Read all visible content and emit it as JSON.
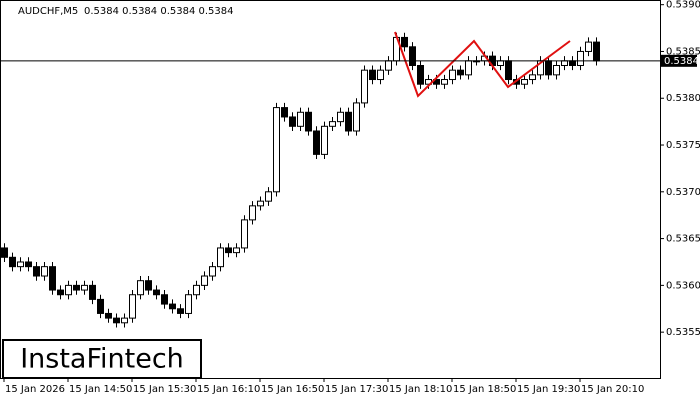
{
  "chart_data": {
    "type": "candlestick",
    "title": "AUDCHF,M5",
    "subtitle": "0.5384 0.5384 0.5384 0.5384",
    "watermark": "InstaFintech",
    "categories": [
      "15 Jan 2026",
      null,
      null,
      null,
      null,
      null,
      null,
      null,
      "15 Jan 14:50",
      null,
      null,
      null,
      null,
      null,
      null,
      null,
      "15 Jan 15:30",
      null,
      null,
      null,
      null,
      null,
      null,
      null,
      "15 Jan 16:10",
      null,
      null,
      null,
      null,
      null,
      null,
      null,
      "15 Jan 16:50",
      null,
      null,
      null,
      null,
      null,
      null,
      null,
      "15 Jan 17:30",
      null,
      null,
      null,
      null,
      null,
      null,
      null,
      "15 Jan 18:10",
      null,
      null,
      null,
      null,
      null,
      null,
      null,
      "15 Jan 18:50",
      null,
      null,
      null,
      null,
      null,
      null,
      null,
      "15 Jan 19:30",
      null,
      null,
      null,
      null,
      null,
      null,
      null,
      "15 Jan 20:10",
      null,
      null
    ],
    "open": [
      0.5364,
      0.5363,
      0.5362,
      0.53625,
      0.5362,
      0.5361,
      0.5362,
      0.53595,
      0.5359,
      0.536,
      0.53595,
      0.536,
      0.53585,
      0.5357,
      0.53565,
      0.5356,
      0.53565,
      0.5359,
      0.53605,
      0.53595,
      0.5359,
      0.5358,
      0.53575,
      0.5357,
      0.5359,
      0.536,
      0.5361,
      0.5362,
      0.5364,
      0.53635,
      0.5364,
      0.5367,
      0.53685,
      0.5369,
      0.537,
      0.5379,
      0.5378,
      0.5377,
      0.53785,
      0.53765,
      0.5374,
      0.5377,
      0.53775,
      0.53785,
      0.53765,
      0.53795,
      0.5383,
      0.5382,
      0.5383,
      0.5384,
      0.53865,
      0.53855,
      0.53835,
      0.53815,
      0.5382,
      0.53815,
      0.5382,
      0.5383,
      0.53825,
      0.5384,
      0.5384,
      0.53845,
      0.53835,
      0.5384,
      0.5382,
      0.53815,
      0.5382,
      0.53825,
      0.5384,
      0.53825,
      0.53835,
      0.5384,
      0.53835,
      0.5385,
      0.5386
    ],
    "high": [
      0.53645,
      0.53635,
      0.5363,
      0.5363,
      0.53625,
      0.53625,
      0.53625,
      0.536,
      0.53605,
      0.53605,
      0.53605,
      0.53605,
      0.5359,
      0.53575,
      0.5357,
      0.5357,
      0.53595,
      0.5361,
      0.5361,
      0.536,
      0.53595,
      0.53585,
      0.5358,
      0.53595,
      0.53605,
      0.53615,
      0.53625,
      0.53645,
      0.53645,
      0.53645,
      0.53675,
      0.5369,
      0.53695,
      0.53705,
      0.53795,
      0.53795,
      0.53785,
      0.5379,
      0.5379,
      0.5377,
      0.53775,
      0.5378,
      0.5379,
      0.5379,
      0.538,
      0.53835,
      0.53835,
      0.53835,
      0.53845,
      0.5387,
      0.5387,
      0.5386,
      0.5384,
      0.53825,
      0.53825,
      0.53825,
      0.53835,
      0.53835,
      0.53845,
      0.53845,
      0.5385,
      0.5385,
      0.53845,
      0.53845,
      0.53825,
      0.53825,
      0.5383,
      0.53845,
      0.53845,
      0.5384,
      0.53845,
      0.53845,
      0.53855,
      0.53865,
      0.53865
    ],
    "low": [
      0.53625,
      0.53615,
      0.53615,
      0.53615,
      0.53605,
      0.53605,
      0.5359,
      0.53585,
      0.53585,
      0.5359,
      0.5359,
      0.5358,
      0.53565,
      0.5356,
      0.53555,
      0.53555,
      0.5356,
      0.53585,
      0.5359,
      0.53585,
      0.53575,
      0.5357,
      0.53565,
      0.53565,
      0.53585,
      0.53595,
      0.53605,
      0.53615,
      0.5363,
      0.5363,
      0.53635,
      0.53665,
      0.5368,
      0.53685,
      0.53695,
      0.53775,
      0.53765,
      0.53765,
      0.5376,
      0.53735,
      0.53735,
      0.53765,
      0.5377,
      0.5376,
      0.5376,
      0.5379,
      0.53815,
      0.53815,
      0.53825,
      0.53835,
      0.5385,
      0.5383,
      0.5381,
      0.5381,
      0.5381,
      0.5381,
      0.53815,
      0.5382,
      0.5382,
      0.53835,
      0.53835,
      0.5383,
      0.5383,
      0.53815,
      0.5381,
      0.5381,
      0.53815,
      0.5382,
      0.5382,
      0.5382,
      0.5383,
      0.5383,
      0.5383,
      0.53845,
      0.53835
    ],
    "close": [
      0.5363,
      0.5362,
      0.53625,
      0.5362,
      0.5361,
      0.5362,
      0.53595,
      0.5359,
      0.536,
      0.53595,
      0.536,
      0.53585,
      0.5357,
      0.53565,
      0.5356,
      0.53565,
      0.5359,
      0.53605,
      0.53595,
      0.5359,
      0.5358,
      0.53575,
      0.5357,
      0.5359,
      0.536,
      0.5361,
      0.5362,
      0.5364,
      0.53635,
      0.5364,
      0.5367,
      0.53685,
      0.5369,
      0.537,
      0.5379,
      0.5378,
      0.5377,
      0.53785,
      0.53765,
      0.5374,
      0.5377,
      0.53775,
      0.53785,
      0.53765,
      0.53795,
      0.5383,
      0.5382,
      0.5383,
      0.5384,
      0.53865,
      0.53855,
      0.53835,
      0.53815,
      0.5382,
      0.53815,
      0.5382,
      0.5383,
      0.53825,
      0.5384,
      0.5384,
      0.53845,
      0.53835,
      0.5384,
      0.5382,
      0.53815,
      0.5382,
      0.53825,
      0.5384,
      0.53825,
      0.53835,
      0.5384,
      0.53835,
      0.5385,
      0.5386,
      0.5384
    ],
    "up_color": "#ffffff",
    "down_color": "#000000",
    "line_color": "#000000",
    "last_price": 0.5384,
    "ylim": [
      0.53501,
      0.53905
    ],
    "yticks": [
      0.5355,
      {
        "value": 0.536,
        "label": "0.5360"
      },
      0.5365,
      {
        "value": 0.537,
        "label": "0.5370"
      },
      0.5375,
      {
        "value": 0.538,
        "label": "0.5380"
      },
      0.5385,
      {
        "value": 0.539,
        "label": "0.5390"
      }
    ]
  }
}
